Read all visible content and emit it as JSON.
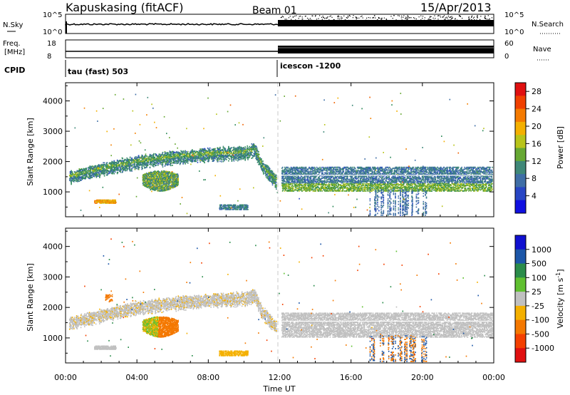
{
  "header": {
    "station": "Kapuskasing (fitACF)",
    "beam": "Beam 01",
    "date": "15/Apr/2013"
  },
  "strips": {
    "nsky_label": "N.Sky",
    "nsky_ticks": [
      "10^5",
      "10^0"
    ],
    "nsearch_label": "N.Search",
    "nsearch_ticks": [
      "10^5",
      "10^0"
    ],
    "freq_label_1": "Freq.",
    "freq_label_2": "[MHz]",
    "freq_ticks": [
      "18",
      "8"
    ],
    "nave_label": "Nave",
    "nave_ticks": [
      "60",
      "0"
    ],
    "cpid_label": "CPID",
    "cpid_segments": [
      {
        "label": "tau (fast) 503",
        "start_hour": 0
      },
      {
        "label": "icescon -1200",
        "start_hour": 12
      }
    ]
  },
  "axes": {
    "x_ticks": [
      "00:00",
      "04:00",
      "08:00",
      "12:00",
      "16:00",
      "20:00",
      "00:00"
    ],
    "xlabel": "Time UT",
    "ylabel": "Slant Range [km]",
    "y_ticks": [
      "1000",
      "2000",
      "3000",
      "4000"
    ]
  },
  "colorbars": {
    "power_label": "Power [dB]",
    "power_ticks": [
      "28",
      "24",
      "20",
      "16",
      "12",
      "8",
      "4"
    ],
    "velocity_label": "Velocity [m s",
    "velocity_label_sup": "-1",
    "velocity_label_end": "]",
    "velocity_ticks": [
      "1000",
      "500",
      "100",
      "25",
      "-25",
      "-100",
      "-500",
      "-1000"
    ]
  },
  "chart_data": [
    {
      "type": "heatmap",
      "panel": "power",
      "x_units": "hours UT",
      "xlim": [
        0,
        24
      ],
      "y_units": "km",
      "ylim": [
        180,
        4600
      ],
      "colorscale": [
        "#1010e0",
        "#2846c4",
        "#3f6ea6",
        "#3f8878",
        "#2f8a5a",
        "#66a833",
        "#b8c41a",
        "#f4b000",
        "#f48000",
        "#f06000",
        "#e01010"
      ],
      "clim": [
        0,
        30
      ],
      "features": [
        {
          "desc": "echo band",
          "x_start": 0.2,
          "x_end": 11.8,
          "y_path": [
            [
              0.2,
              1550
            ],
            [
              2,
              1800
            ],
            [
              4,
              2050
            ],
            [
              6,
              2200
            ],
            [
              8,
              2300
            ],
            [
              10,
              2350
            ],
            [
              10.6,
              2450
            ],
            [
              11,
              1900
            ],
            [
              11.8,
              1400
            ]
          ],
          "value": 10
        },
        {
          "desc": "echo patch",
          "x_start": 4.3,
          "x_end": 6.3,
          "y_center": 1450,
          "value": 14
        },
        {
          "desc": "near range patch",
          "x_start": 1.6,
          "x_end": 2.8,
          "y_center": 700,
          "value": 20
        },
        {
          "desc": "near range patch",
          "x_start": 8.6,
          "x_end": 10.2,
          "y_center": 500,
          "value": 6
        },
        {
          "desc": "echo band",
          "x_start": 12,
          "x_end": 24,
          "y_center": 1400,
          "value": 8
        }
      ]
    },
    {
      "type": "heatmap",
      "panel": "velocity",
      "x_units": "hours UT",
      "xlim": [
        0,
        24
      ],
      "y_units": "km",
      "ylim": [
        180,
        4600
      ],
      "colorscale": [
        "#1010d0",
        "#1c56a8",
        "#2a8c4a",
        "#60c030",
        "#c0c0c0",
        "#f4b000",
        "#f47800",
        "#f44000",
        "#e01010"
      ],
      "clim": [
        -1000,
        1000
      ],
      "features": [
        {
          "desc": "echo band",
          "x_start": 0.2,
          "x_end": 11.8,
          "y_center": 1900,
          "value": 0
        },
        {
          "desc": "echo patch",
          "x_start": 4.3,
          "x_end": 6.3,
          "y_center": 1450,
          "value": -150
        },
        {
          "desc": "near range patch",
          "x_start": 2.2,
          "x_end": 2.6,
          "y_center": 2350,
          "value": -100
        },
        {
          "desc": "echo band",
          "x_start": 12,
          "x_end": 24,
          "y_center": 1450,
          "value": 0
        }
      ]
    }
  ]
}
